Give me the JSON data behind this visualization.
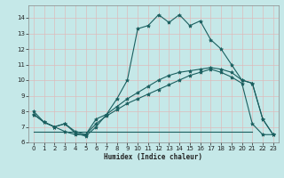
{
  "xlabel": "Humidex (Indice chaleur)",
  "xlim": [
    -0.5,
    23.5
  ],
  "ylim": [
    6,
    14.8
  ],
  "yticks": [
    6,
    7,
    8,
    9,
    10,
    11,
    12,
    13,
    14
  ],
  "xticks": [
    0,
    1,
    2,
    3,
    4,
    5,
    6,
    7,
    8,
    9,
    10,
    11,
    12,
    13,
    14,
    15,
    16,
    17,
    18,
    19,
    20,
    21,
    22,
    23
  ],
  "bg_color": "#c5e8e8",
  "grid_color": "#ddbcbc",
  "line_color": "#1a5f5f",
  "line1_x": [
    0,
    1,
    2,
    3,
    4,
    5,
    6,
    7,
    8,
    9,
    10,
    11,
    12,
    13,
    14,
    15,
    16,
    17,
    18,
    19,
    20,
    21,
    22,
    23
  ],
  "line1_y": [
    8.0,
    7.3,
    7.0,
    6.7,
    6.5,
    6.5,
    7.5,
    7.8,
    8.8,
    10.0,
    13.3,
    13.5,
    14.2,
    13.7,
    14.2,
    13.5,
    13.8,
    12.6,
    12.0,
    11.0,
    10.0,
    9.8,
    7.5,
    6.5
  ],
  "line2_x": [
    0,
    1,
    2,
    3,
    4,
    5,
    6,
    7,
    8,
    9,
    10,
    11,
    12,
    13,
    14,
    15,
    16,
    17,
    18,
    19,
    20,
    21,
    22,
    23
  ],
  "line2_y": [
    7.8,
    7.3,
    7.0,
    7.2,
    6.6,
    6.4,
    7.0,
    7.8,
    8.3,
    8.8,
    9.2,
    9.6,
    10.0,
    10.3,
    10.5,
    10.6,
    10.7,
    10.8,
    10.7,
    10.5,
    10.0,
    9.8,
    7.5,
    6.5
  ],
  "line3_x": [
    0,
    6,
    17,
    21
  ],
  "line3_y": [
    6.7,
    6.7,
    6.7,
    6.7
  ],
  "line4_x": [
    0,
    1,
    2,
    3,
    4,
    5,
    6,
    7,
    8,
    9,
    10,
    11,
    12,
    13,
    14,
    15,
    16,
    17,
    18,
    19,
    20,
    21,
    22,
    23
  ],
  "line4_y": [
    7.8,
    7.3,
    7.0,
    7.2,
    6.7,
    6.5,
    7.2,
    7.7,
    8.1,
    8.5,
    8.8,
    9.1,
    9.4,
    9.7,
    10.0,
    10.3,
    10.5,
    10.7,
    10.5,
    10.2,
    9.8,
    7.2,
    6.5,
    6.5
  ]
}
